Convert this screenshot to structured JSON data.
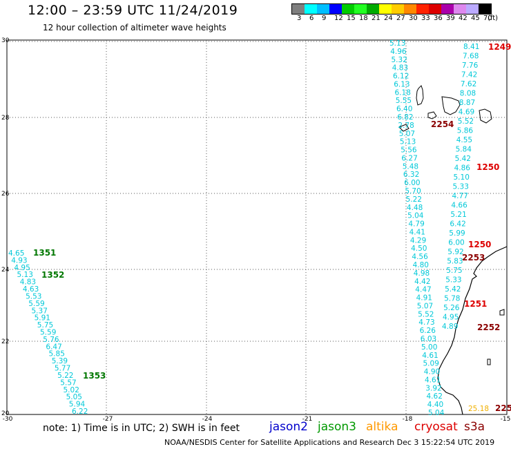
{
  "header": {
    "title": "12:00 – 23:59 UTC 11/24/2019",
    "subtitle": "12 hour collection of altimeter wave heights"
  },
  "legend": {
    "colors": [
      "#7f7f7f",
      "#00ffff",
      "#00bfff",
      "#0000ff",
      "#00cc00",
      "#22ff22",
      "#00aa00",
      "#ffff00",
      "#ffcc00",
      "#ff8800",
      "#ff2200",
      "#dd0000",
      "#aa00aa",
      "#dd88ee",
      "#bbaaff",
      "#000000"
    ],
    "labels": [
      "3",
      "6",
      "9",
      "12",
      "15",
      "18",
      "21",
      "24",
      "27",
      "30",
      "33",
      "36",
      "39",
      "42",
      "45",
      "70",
      "(ft)"
    ]
  },
  "axes": {
    "x_ticks": [
      "-30",
      "-27",
      "-24",
      "-21",
      "-18",
      "-15"
    ],
    "y_ticks": [
      "30",
      "28",
      "26",
      "24",
      "22",
      "20"
    ]
  },
  "tracks": {
    "east_a": [
      "5.13",
      "4.96",
      "5.32",
      "4.83",
      "6.12",
      "6.13",
      "6.18",
      "5.55",
      "6.40",
      "6.82",
      "2.78",
      "5.07",
      "5.13",
      "5.56",
      "6.27",
      "5.48",
      "6.32",
      "6.00",
      "5.70",
      "5.22",
      "4.48",
      "5.04",
      "4.79",
      "4.41",
      "4.29",
      "4.50",
      "4.56",
      "4.80",
      "4.98",
      "4.42",
      "4.47",
      "4.91",
      "5.07",
      "5.52",
      "4.73",
      "6.26",
      "6.03",
      "5.00",
      "4.61",
      "5.09",
      "4.90",
      "4.61",
      "3.92",
      "4.62",
      "4.40",
      "5.04"
    ],
    "east_b": [
      "8.41",
      "7.68",
      "7.76",
      "7.42",
      "7.62",
      "8.08",
      "8.87",
      "4.69",
      "5.52",
      "5.86",
      "4.55",
      "5.84",
      "5.42",
      "4.86",
      "5.10",
      "5.33",
      "4.77",
      "4.66",
      "5.21",
      "6.42",
      "5.99",
      "6.00",
      "5.92",
      "5.83",
      "5.75",
      "5.33",
      "5.42",
      "5.78",
      "5.26",
      "4.95",
      "4.89"
    ],
    "west": [
      "4.65",
      "4.93",
      "4.95",
      "5.13",
      "4.83",
      "4.63",
      "5.53",
      "5.59",
      "5.37",
      "5.91",
      "5.75",
      "5.59",
      "5.76",
      "6.47",
      "5.85",
      "5.39",
      "5.77",
      "5.22",
      "5.57",
      "5.02",
      "5.05",
      "5.94",
      "6.22"
    ]
  },
  "time_labels": {
    "t1249": "1249",
    "t2254": "2254",
    "t1250a": "1250",
    "t1250b": "1250",
    "t2253": "2253",
    "t1251": "1251",
    "t2252": "2252",
    "t225": "225",
    "t1351": "1351",
    "t1352": "1352",
    "t1353": "1353"
  },
  "misc_values": {
    "v2518": "25.18"
  },
  "note": "note:  1) Time is in UTC;  2) SWH is in feet",
  "satellites": {
    "jason2": "jason2",
    "jason3": "jason3",
    "altika": "altika",
    "cryosat": "cryosat",
    "s3a": "s3a"
  },
  "colors": {
    "jason2": "#0000cc",
    "jason3": "#009900",
    "altika": "#ff9900",
    "cryosat": "#dd0000",
    "s3a": "#8b0000",
    "swh": "#00c8d8"
  },
  "footer": "NOAA/NESDIS Center for Satellite Applications and Research    Dec  3 15:22:54 UTC 2019"
}
